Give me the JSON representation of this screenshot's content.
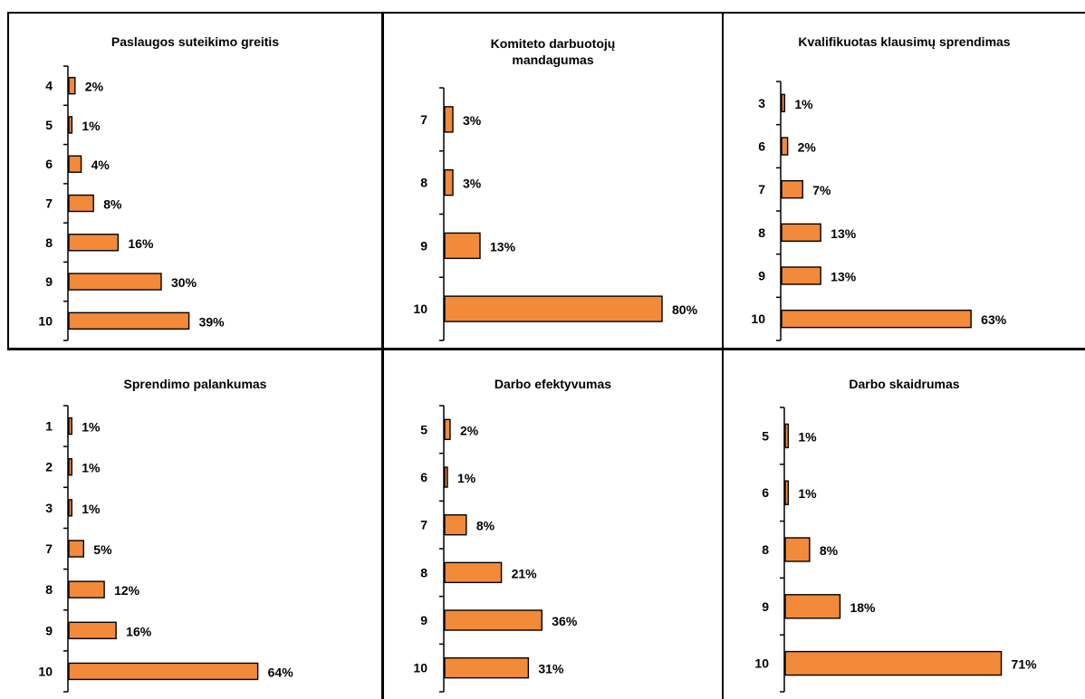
{
  "colors": {
    "bar_fill": "#F28A3A",
    "bar_stroke": "#000000",
    "axis": "#000000"
  },
  "chart_data": [
    {
      "type": "bar",
      "orientation": "horizontal",
      "title": "Paslaugos suteikimo greitis",
      "categories": [
        "4",
        "5",
        "6",
        "7",
        "8",
        "9",
        "10"
      ],
      "values": [
        2,
        1,
        4,
        8,
        16,
        30,
        39
      ],
      "labels": [
        "2%",
        "1%",
        "4%",
        "8%",
        "16%",
        "30%",
        "39%"
      ],
      "unit": "%",
      "xlim": [
        0,
        100
      ]
    },
    {
      "type": "bar",
      "orientation": "horizontal",
      "title": "Komiteto darbuotojų mandagumas",
      "title_lines": [
        "Komiteto darbuotojų",
        "mandagumas"
      ],
      "categories": [
        "7",
        "8",
        "9",
        "10"
      ],
      "values": [
        3,
        3,
        13,
        80
      ],
      "labels": [
        "3%",
        "3%",
        "13%",
        "80%"
      ],
      "unit": "%",
      "xlim": [
        0,
        100
      ]
    },
    {
      "type": "bar",
      "orientation": "horizontal",
      "title": "Kvalifikuotas klausimų sprendimas",
      "categories": [
        "3",
        "6",
        "7",
        "8",
        "9",
        "10"
      ],
      "values": [
        1,
        2,
        7,
        13,
        13,
        63
      ],
      "labels": [
        "1%",
        "2%",
        "7%",
        "13%",
        "13%",
        "63%"
      ],
      "unit": "%",
      "xlim": [
        0,
        100
      ]
    },
    {
      "type": "bar",
      "orientation": "horizontal",
      "title": "Sprendimo palankumas",
      "categories": [
        "1",
        "2",
        "3",
        "7",
        "8",
        "9",
        "10"
      ],
      "values": [
        1,
        1,
        1,
        5,
        12,
        16,
        64
      ],
      "labels": [
        "1%",
        "1%",
        "1%",
        "5%",
        "12%",
        "16%",
        "64%"
      ],
      "unit": "%",
      "xlim": [
        0,
        100
      ]
    },
    {
      "type": "bar",
      "orientation": "horizontal",
      "title": "Darbo efektyvumas",
      "categories": [
        "5",
        "6",
        "7",
        "8",
        "9",
        "10"
      ],
      "values": [
        2,
        1,
        8,
        21,
        36,
        31
      ],
      "labels": [
        "2%",
        "1%",
        "8%",
        "21%",
        "36%",
        "31%"
      ],
      "unit": "%",
      "xlim": [
        0,
        100
      ]
    },
    {
      "type": "bar",
      "orientation": "horizontal",
      "title": "Darbo skaidrumas",
      "categories": [
        "5",
        "6",
        "8",
        "9",
        "10"
      ],
      "values": [
        1,
        1,
        8,
        18,
        71
      ],
      "labels": [
        "1%",
        "1%",
        "8%",
        "18%",
        "71%"
      ],
      "unit": "%",
      "xlim": [
        0,
        100
      ]
    }
  ]
}
